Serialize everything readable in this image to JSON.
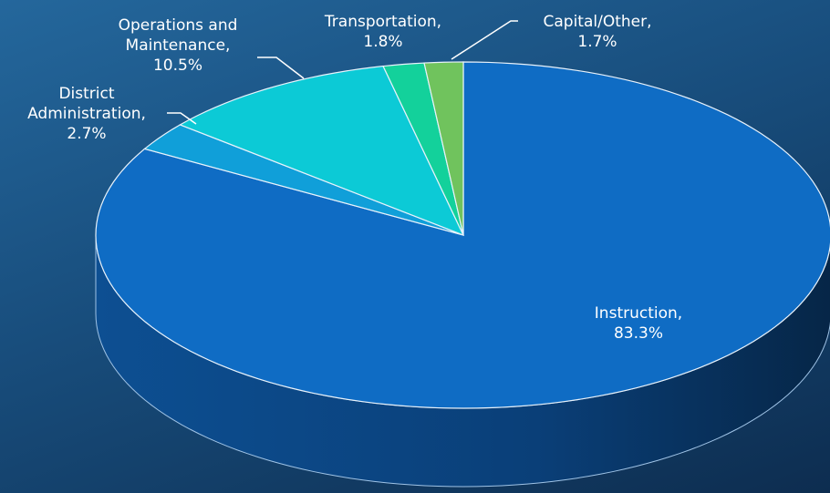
{
  "chart_data": {
    "type": "pie3d",
    "categories": [
      "Instruction,",
      "District Administration,",
      "Operations and Maintenance,",
      "Transportation,",
      "Capital/Other,"
    ],
    "values": [
      83.3,
      2.7,
      10.5,
      1.8,
      1.7
    ],
    "value_labels": [
      "83.3%",
      "2.7%",
      "10.5%",
      "1.8%",
      "1.7%"
    ],
    "colors": [
      "#0f6cc4",
      "#109fd9",
      "#0ccad6",
      "#13d19b",
      "#70c35d"
    ]
  }
}
